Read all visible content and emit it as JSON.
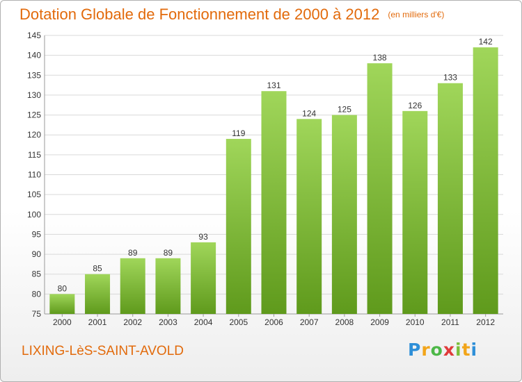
{
  "title": {
    "main": "Dotation Globale de Fonctionnement de 2000 à 2012",
    "unit": "(en milliers d'€)"
  },
  "commune": "LIXING-LèS-SAINT-AVOLD",
  "logo": {
    "letters": [
      "P",
      "r",
      "o",
      "x",
      "i",
      "t",
      "i"
    ],
    "colors": [
      "#2e8fd8",
      "#f2a51a",
      "#4db848",
      "#e03a3a",
      "#7bbf3a",
      "#f2a51a",
      "#2e8fd8"
    ]
  },
  "colors": {
    "bar_top": "#a0d65a",
    "bar_bottom": "#5f9a1c",
    "grid": "#d9d9d9",
    "axis_text": "#333333"
  },
  "chart_data": {
    "type": "bar",
    "categories": [
      "2000",
      "2001",
      "2002",
      "2003",
      "2004",
      "2005",
      "2006",
      "2007",
      "2008",
      "2009",
      "2010",
      "2011",
      "2012"
    ],
    "values": [
      80,
      85,
      89,
      89,
      93,
      119,
      131,
      124,
      125,
      138,
      126,
      133,
      142
    ],
    "data_labels": [
      "80",
      "85",
      "89",
      "89",
      "93",
      "119",
      "131",
      "124",
      "125",
      "138",
      "126",
      "133",
      "142"
    ],
    "y_ticks": [
      "75",
      "80",
      "85",
      "90",
      "95",
      "100",
      "105",
      "110",
      "115",
      "120",
      "125",
      "130",
      "135",
      "140",
      "145"
    ],
    "ylim": [
      75,
      145
    ],
    "grid": true,
    "legend": "none",
    "xlabel": "",
    "ylabel": ""
  }
}
